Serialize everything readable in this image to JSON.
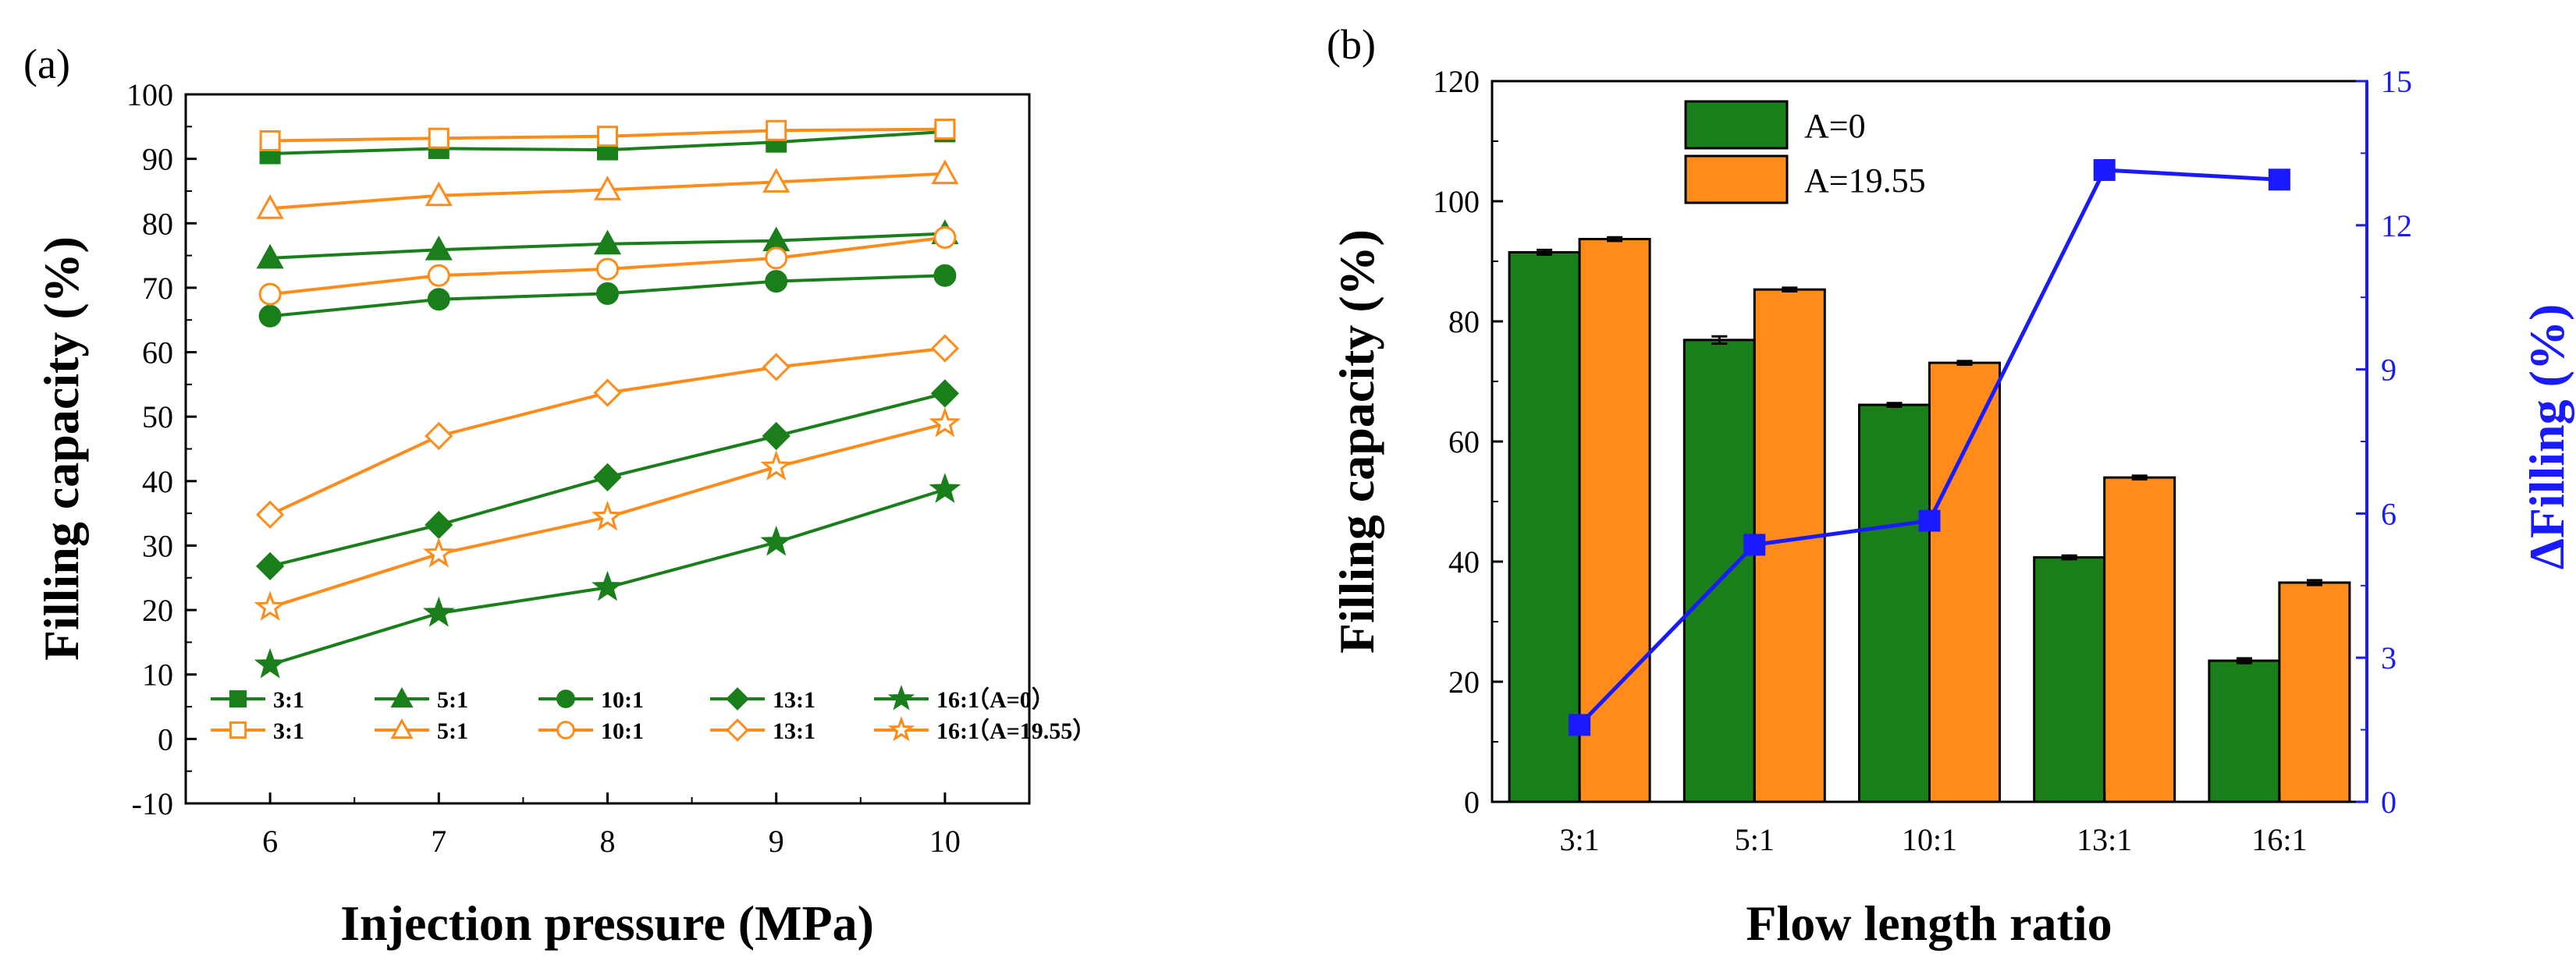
{
  "chart_data": [
    {
      "panel_label": "(a)",
      "type": "line",
      "xlabel": "Injection pressure (MPa)",
      "ylabel": "Filling capacity (%)",
      "x": [
        6,
        7,
        8,
        9,
        10
      ],
      "xlim": [
        5.5,
        10.5
      ],
      "ylim": [
        -10,
        100
      ],
      "xticks": [
        "6",
        "7",
        "8",
        "9",
        "10"
      ],
      "yticks": [
        "-10",
        "0",
        "10",
        "20",
        "30",
        "40",
        "50",
        "60",
        "70",
        "80",
        "90",
        "100"
      ],
      "ytick_values": [
        -10,
        0,
        10,
        20,
        30,
        40,
        50,
        60,
        70,
        80,
        90,
        100
      ],
      "colors": {
        "A0": "#1a7f1a",
        "A1955": "#ff8c1a"
      },
      "legend_position": "bottom",
      "legend_group_labels": [
        "（A=0）",
        "（A=19.55）"
      ],
      "series": [
        {
          "name": "3:1",
          "group": "A=0",
          "marker": "square",
          "filled": true,
          "values": [
            90.8,
            91.6,
            91.4,
            92.6,
            94.2
          ]
        },
        {
          "name": "5:1",
          "group": "A=0",
          "marker": "triangle",
          "filled": true,
          "values": [
            74.6,
            75.9,
            76.8,
            77.3,
            78.4
          ]
        },
        {
          "name": "10:1",
          "group": "A=0",
          "marker": "circle",
          "filled": true,
          "values": [
            65.6,
            68.2,
            69.1,
            71.0,
            71.9
          ]
        },
        {
          "name": "13:1",
          "group": "A=0",
          "marker": "diamond",
          "filled": true,
          "values": [
            26.8,
            33.2,
            40.6,
            47.0,
            53.6
          ]
        },
        {
          "name": "16:1",
          "group": "A=0",
          "marker": "star",
          "filled": true,
          "values": [
            11.5,
            19.5,
            23.5,
            30.5,
            38.7
          ]
        },
        {
          "name": "3:1",
          "group": "A=19.55",
          "marker": "square",
          "filled": false,
          "values": [
            92.8,
            93.2,
            93.5,
            94.4,
            94.6
          ]
        },
        {
          "name": "5:1",
          "group": "A=19.55",
          "marker": "triangle",
          "filled": false,
          "values": [
            82.3,
            84.3,
            85.2,
            86.4,
            87.7
          ]
        },
        {
          "name": "10:1",
          "group": "A=19.55",
          "marker": "circle",
          "filled": false,
          "values": [
            69.0,
            71.9,
            72.9,
            74.6,
            77.8
          ]
        },
        {
          "name": "13:1",
          "group": "A=19.55",
          "marker": "diamond",
          "filled": false,
          "values": [
            34.8,
            47.0,
            53.7,
            57.7,
            60.6
          ]
        },
        {
          "name": "16:1",
          "group": "A=19.55",
          "marker": "star",
          "filled": false,
          "values": [
            20.4,
            28.7,
            34.4,
            42.2,
            48.9
          ]
        }
      ]
    },
    {
      "panel_label": "(b)",
      "type": "bar",
      "xlabel": "Flow length ratio",
      "ylabel": "Filling capacity (%)",
      "y2label": "ΔFilling (%)",
      "categories": [
        "3:1",
        "5:1",
        "10:1",
        "13:1",
        "16:1"
      ],
      "ylim": [
        0,
        120
      ],
      "yticks": [
        "0",
        "20",
        "40",
        "60",
        "80",
        "100",
        "120"
      ],
      "ytick_values": [
        0,
        20,
        40,
        60,
        80,
        100,
        120
      ],
      "y2lim": [
        0,
        15
      ],
      "y2ticks": [
        "0",
        "3",
        "6",
        "9",
        "12",
        "15"
      ],
      "y2tick_values": [
        0,
        3,
        6,
        9,
        12,
        15
      ],
      "legend_position": "top-left",
      "series": [
        {
          "name": "A=0",
          "color": "#1a7f1a",
          "values": [
            91.5,
            76.9,
            66.1,
            40.7,
            23.5
          ],
          "errors": [
            0.4,
            0.6,
            0.3,
            0.3,
            0.4
          ]
        },
        {
          "name": "A=19.55",
          "color": "#ff8c1a",
          "values": [
            93.7,
            85.3,
            73.1,
            54.0,
            36.5
          ],
          "errors": [
            0.3,
            0.3,
            0.3,
            0.3,
            0.4
          ]
        }
      ],
      "delta_series": {
        "name": "ΔFilling",
        "color": "#1a1aff",
        "axis": "right",
        "marker": "square",
        "values": [
          1.6,
          5.35,
          5.85,
          13.15,
          12.95
        ]
      }
    }
  ]
}
